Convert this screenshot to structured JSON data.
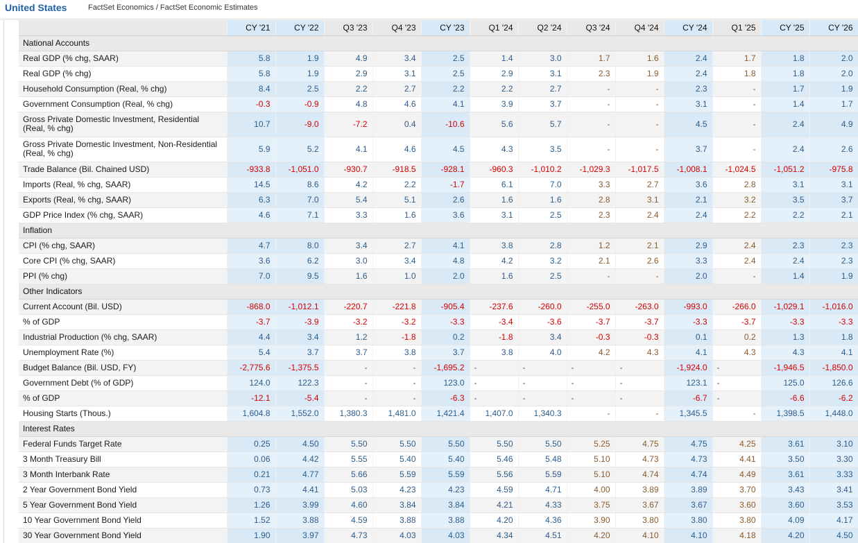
{
  "header": {
    "country": "United States",
    "source": "FactSet Economics / FactSet Economic Estimates"
  },
  "columns": [
    "CY '21",
    "CY '22",
    "Q3 '23",
    "Q4 '23",
    "CY '23",
    "Q1 '24",
    "Q2 '24",
    "Q3 '24",
    "Q4 '24",
    "CY '24",
    "Q1 '25",
    "CY '25",
    "CY '26"
  ],
  "highlight_columns": [
    0,
    1,
    4,
    9,
    11,
    12
  ],
  "estimate_columns": [
    7,
    8,
    10
  ],
  "colors": {
    "accent": "#1f5fa8",
    "actual_text": "#2c5d8c",
    "estimate_text": "#8a5a2b",
    "negative_text": "#d40000",
    "highlight_col_bg": "#e4f0fa"
  },
  "sections": [
    {
      "title": "National Accounts",
      "rows": [
        {
          "label": "Real GDP (% chg, SAAR)",
          "values": [
            "5.8",
            "1.9",
            "4.9",
            "3.4",
            "2.5",
            "1.4",
            "3.0",
            "1.7",
            "1.6",
            "2.4",
            "1.7",
            "1.8",
            "2.0"
          ]
        },
        {
          "label": "Real GDP (% chg)",
          "values": [
            "5.8",
            "1.9",
            "2.9",
            "3.1",
            "2.5",
            "2.9",
            "3.1",
            "2.3",
            "1.9",
            "2.4",
            "1.8",
            "1.8",
            "2.0"
          ]
        },
        {
          "label": "Household Consumption (Real, % chg)",
          "values": [
            "8.4",
            "2.5",
            "2.2",
            "2.7",
            "2.2",
            "2.2",
            "2.7",
            "-",
            "-",
            "2.3",
            "-",
            "1.7",
            "1.9"
          ]
        },
        {
          "label": "Government Consumption (Real, % chg)",
          "values": [
            "-0.3",
            "-0.9",
            "4.8",
            "4.6",
            "4.1",
            "3.9",
            "3.7",
            "-",
            "-",
            "3.1",
            "-",
            "1.4",
            "1.7"
          ]
        },
        {
          "label": "Gross Private Domestic Investment, Residential (Real, % chg)",
          "tall": true,
          "values": [
            "10.7",
            "-9.0",
            "-7.2",
            "0.4",
            "-10.6",
            "5.6",
            "5.7",
            "-",
            "-",
            "4.5",
            "-",
            "2.4",
            "4.9"
          ]
        },
        {
          "label": "Gross Private Domestic Investment, Non-Residential (Real, % chg)",
          "tall": true,
          "values": [
            "5.9",
            "5.2",
            "4.1",
            "4.6",
            "4.5",
            "4.3",
            "3.5",
            "-",
            "-",
            "3.7",
            "-",
            "2.4",
            "2.6"
          ]
        },
        {
          "label": "Trade Balance (Bil. Chained USD)",
          "values": [
            "-933.8",
            "-1,051.0",
            "-930.7",
            "-918.5",
            "-928.1",
            "-960.3",
            "-1,010.2",
            "-1,029.3",
            "-1,017.5",
            "-1,008.1",
            "-1,024.5",
            "-1,051.2",
            "-975.8"
          ]
        },
        {
          "label": "Imports (Real, % chg, SAAR)",
          "values": [
            "14.5",
            "8.6",
            "4.2",
            "2.2",
            "-1.7",
            "6.1",
            "7.0",
            "3.3",
            "2.7",
            "3.6",
            "2.8",
            "3.1",
            "3.1"
          ]
        },
        {
          "label": "Exports (Real, % chg, SAAR)",
          "values": [
            "6.3",
            "7.0",
            "5.4",
            "5.1",
            "2.6",
            "1.6",
            "1.6",
            "2.8",
            "3.1",
            "2.1",
            "3.2",
            "3.5",
            "3.7"
          ]
        },
        {
          "label": "GDP Price Index (% chg, SAAR)",
          "values": [
            "4.6",
            "7.1",
            "3.3",
            "1.6",
            "3.6",
            "3.1",
            "2.5",
            "2.3",
            "2.4",
            "2.4",
            "2.2",
            "2.2",
            "2.1"
          ]
        }
      ]
    },
    {
      "title": "Inflation",
      "rows": [
        {
          "label": "CPI (% chg, SAAR)",
          "values": [
            "4.7",
            "8.0",
            "3.4",
            "2.7",
            "4.1",
            "3.8",
            "2.8",
            "1.2",
            "2.1",
            "2.9",
            "2.4",
            "2.3",
            "2.3"
          ]
        },
        {
          "label": "Core CPI (% chg, SAAR)",
          "values": [
            "3.6",
            "6.2",
            "3.0",
            "3.4",
            "4.8",
            "4.2",
            "3.2",
            "2.1",
            "2.6",
            "3.3",
            "2.4",
            "2.4",
            "2.3"
          ]
        },
        {
          "label": "PPI (% chg)",
          "values": [
            "7.0",
            "9.5",
            "1.6",
            "1.0",
            "2.0",
            "1.6",
            "2.5",
            "-",
            "-",
            "2.0",
            "-",
            "1.4",
            "1.9"
          ]
        }
      ]
    },
    {
      "title": "Other Indicators",
      "rows": [
        {
          "label": "Current Account (Bil. USD)",
          "values": [
            "-868.0",
            "-1,012.1",
            "-220.7",
            "-221.8",
            "-905.4",
            "-237.6",
            "-260.0",
            "-255.0",
            "-263.0",
            "-993.0",
            "-266.0",
            "-1,029.1",
            "-1,016.0"
          ]
        },
        {
          "label": "% of GDP",
          "values": [
            "-3.7",
            "-3.9",
            "-3.2",
            "-3.2",
            "-3.3",
            "-3.4",
            "-3.6",
            "-3.7",
            "-3.7",
            "-3.3",
            "-3.7",
            "-3.3",
            "-3.3"
          ]
        },
        {
          "label": "Industrial Production (% chg, SAAR)",
          "values": [
            "4.4",
            "3.4",
            "1.2",
            "-1.8",
            "0.2",
            "-1.8",
            "3.4",
            "-0.3",
            "-0.3",
            "0.1",
            "0.2",
            "1.3",
            "1.8"
          ]
        },
        {
          "label": "Unemployment Rate (%)",
          "values": [
            "5.4",
            "3.7",
            "3.7",
            "3.8",
            "3.7",
            "3.8",
            "4.0",
            "4.2",
            "4.3",
            "4.1",
            "4.3",
            "4.3",
            "4.1"
          ]
        },
        {
          "label": "Budget Balance (Bil. USD, FY)",
          "left_dash": true,
          "values": [
            "-2,775.6",
            "-1,375.5",
            "-",
            "-",
            "-1,695.2",
            "-",
            "-",
            "-",
            "-",
            "-1,924.0",
            "-",
            "-1,946.5",
            "-1,850.0"
          ]
        },
        {
          "label": "Government Debt (% of GDP)",
          "left_dash": true,
          "values": [
            "124.0",
            "122.3",
            "-",
            "-",
            "123.0",
            "-",
            "-",
            "-",
            "-",
            "123.1",
            "-",
            "125.0",
            "126.6"
          ]
        },
        {
          "label": "% of GDP",
          "left_dash": true,
          "values": [
            "-12.1",
            "-5.4",
            "-",
            "-",
            "-6.3",
            "-",
            "-",
            "-",
            "-",
            "-6.7",
            "-",
            "-6.6",
            "-6.2"
          ]
        },
        {
          "label": "Housing Starts (Thous.)",
          "values": [
            "1,604.8",
            "1,552.0",
            "1,380.3",
            "1,481.0",
            "1,421.4",
            "1,407.0",
            "1,340.3",
            "-",
            "-",
            "1,345.5",
            "-",
            "1,398.5",
            "1,448.0"
          ]
        }
      ]
    },
    {
      "title": "Interest Rates",
      "rows": [
        {
          "label": "Federal Funds Target Rate",
          "values": [
            "0.25",
            "4.50",
            "5.50",
            "5.50",
            "5.50",
            "5.50",
            "5.50",
            "5.25",
            "4.75",
            "4.75",
            "4.25",
            "3.61",
            "3.10"
          ]
        },
        {
          "label": "3 Month Treasury Bill",
          "values": [
            "0.06",
            "4.42",
            "5.55",
            "5.40",
            "5.40",
            "5.46",
            "5.48",
            "5.10",
            "4.73",
            "4.73",
            "4.41",
            "3.50",
            "3.30"
          ]
        },
        {
          "label": "3 Month Interbank Rate",
          "values": [
            "0.21",
            "4.77",
            "5.66",
            "5.59",
            "5.59",
            "5.56",
            "5.59",
            "5.10",
            "4.74",
            "4.74",
            "4.49",
            "3.61",
            "3.33"
          ]
        },
        {
          "label": "2 Year Government Bond Yield",
          "values": [
            "0.73",
            "4.41",
            "5.03",
            "4.23",
            "4.23",
            "4.59",
            "4.71",
            "4.00",
            "3.89",
            "3.89",
            "3.70",
            "3.43",
            "3.41"
          ]
        },
        {
          "label": "5 Year Government Bond Yield",
          "values": [
            "1.26",
            "3.99",
            "4.60",
            "3.84",
            "3.84",
            "4.21",
            "4.33",
            "3.75",
            "3.67",
            "3.67",
            "3.60",
            "3.60",
            "3.53"
          ]
        },
        {
          "label": "10 Year Government Bond Yield",
          "values": [
            "1.52",
            "3.88",
            "4.59",
            "3.88",
            "3.88",
            "4.20",
            "4.36",
            "3.90",
            "3.80",
            "3.80",
            "3.80",
            "4.09",
            "4.17"
          ]
        },
        {
          "label": "30 Year Government Bond Yield",
          "values": [
            "1.90",
            "3.97",
            "4.73",
            "4.03",
            "4.03",
            "4.34",
            "4.51",
            "4.20",
            "4.10",
            "4.10",
            "4.18",
            "4.20",
            "4.50"
          ]
        }
      ]
    }
  ]
}
